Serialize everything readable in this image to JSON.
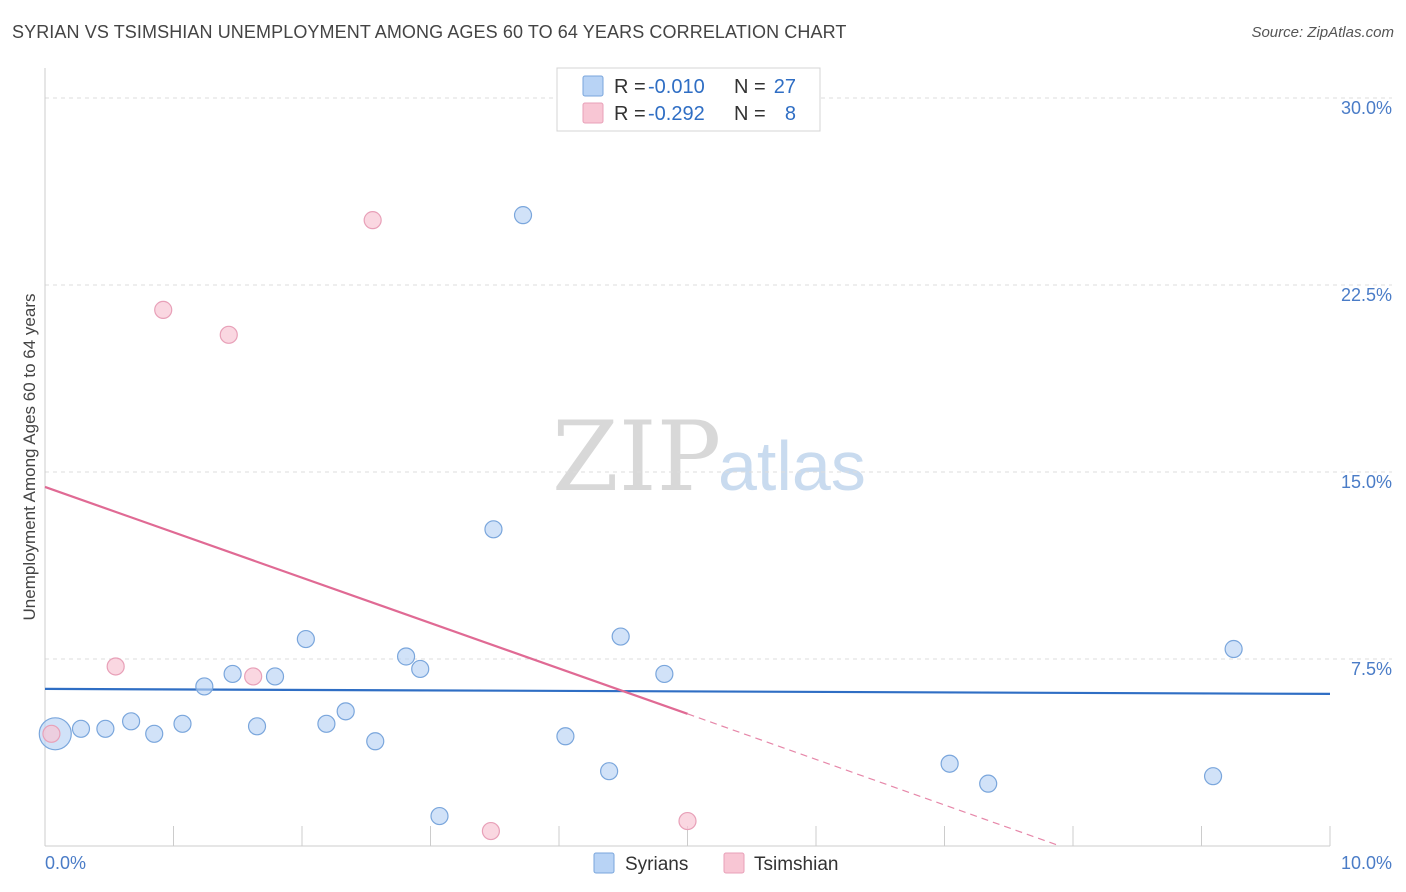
{
  "header": {
    "title": "SYRIAN VS TSIMSHIAN UNEMPLOYMENT AMONG AGES 60 TO 64 YEARS CORRELATION CHART",
    "source": "Source: ZipAtlas.com"
  },
  "watermark": {
    "zip": "ZIP",
    "atlas": "atlas"
  },
  "legend": {
    "rows": [
      {
        "r_label": "R =",
        "r_value": "-0.010",
        "n_label": "N =",
        "n_value": "27"
      },
      {
        "r_label": "R =",
        "r_value": "-0.292",
        "n_label": "N =",
        "n_value": "8"
      }
    ]
  },
  "bottom_legend": {
    "syrians": "Syrians",
    "tsimshian": "Tsimshian"
  },
  "colors": {
    "syrian_fill": "#b8d3f5",
    "syrian_stroke": "#7aa6dc",
    "syrian_line": "#2f6ec4",
    "tsimshian_fill": "#f8c6d4",
    "tsimshian_stroke": "#e8a0b8",
    "tsimshian_line": "#e06a94"
  },
  "chart_data": {
    "type": "scatter",
    "title": "SYRIAN VS TSIMSHIAN UNEMPLOYMENT AMONG AGES 60 TO 64 YEARS CORRELATION CHART",
    "xlabel": "",
    "ylabel": "Unemployment Among Ages 60 to 64 years",
    "xlim": [
      0,
      10
    ],
    "ylim": [
      0,
      30
    ],
    "x_tick_labels": [
      "0.0%",
      "10.0%"
    ],
    "y_tick_labels": [
      "7.5%",
      "15.0%",
      "22.5%",
      "30.0%"
    ],
    "y_ticks": [
      7.5,
      15.0,
      22.5,
      30.0
    ],
    "series": [
      {
        "name": "Syrians",
        "r": -0.01,
        "n": 27,
        "trend": {
          "x": [
            0,
            10
          ],
          "y": [
            6.3,
            6.1
          ]
        },
        "points": [
          {
            "x": 0.08,
            "y": 4.5,
            "big": true
          },
          {
            "x": 0.28,
            "y": 4.7
          },
          {
            "x": 0.47,
            "y": 4.7
          },
          {
            "x": 0.67,
            "y": 5.0
          },
          {
            "x": 0.85,
            "y": 4.5
          },
          {
            "x": 1.07,
            "y": 4.9
          },
          {
            "x": 1.24,
            "y": 6.4
          },
          {
            "x": 1.46,
            "y": 6.9
          },
          {
            "x": 1.65,
            "y": 4.8
          },
          {
            "x": 1.79,
            "y": 6.8
          },
          {
            "x": 2.03,
            "y": 8.3
          },
          {
            "x": 2.19,
            "y": 4.9
          },
          {
            "x": 2.34,
            "y": 5.4
          },
          {
            "x": 2.57,
            "y": 4.2
          },
          {
            "x": 2.81,
            "y": 7.6
          },
          {
            "x": 2.92,
            "y": 7.1
          },
          {
            "x": 3.07,
            "y": 1.2
          },
          {
            "x": 3.49,
            "y": 12.7
          },
          {
            "x": 3.72,
            "y": 25.3
          },
          {
            "x": 4.05,
            "y": 4.4
          },
          {
            "x": 4.39,
            "y": 3.0
          },
          {
            "x": 4.48,
            "y": 8.4
          },
          {
            "x": 4.82,
            "y": 6.9
          },
          {
            "x": 7.04,
            "y": 3.3
          },
          {
            "x": 7.34,
            "y": 2.5
          },
          {
            "x": 9.09,
            "y": 2.8
          },
          {
            "x": 9.25,
            "y": 7.9
          }
        ]
      },
      {
        "name": "Tsimshian",
        "r": -0.292,
        "n": 8,
        "trend": {
          "x": [
            0,
            5.0
          ],
          "y": [
            14.4,
            5.3
          ]
        },
        "trend_dashed": {
          "x": [
            5.0,
            7.9
          ],
          "y": [
            5.3,
            0.0
          ]
        },
        "points": [
          {
            "x": 0.05,
            "y": 4.5
          },
          {
            "x": 0.55,
            "y": 7.2
          },
          {
            "x": 0.92,
            "y": 21.5
          },
          {
            "x": 1.43,
            "y": 20.5
          },
          {
            "x": 1.62,
            "y": 6.8
          },
          {
            "x": 2.55,
            "y": 25.1
          },
          {
            "x": 3.47,
            "y": 0.6
          },
          {
            "x": 5.0,
            "y": 1.0
          }
        ]
      }
    ]
  }
}
